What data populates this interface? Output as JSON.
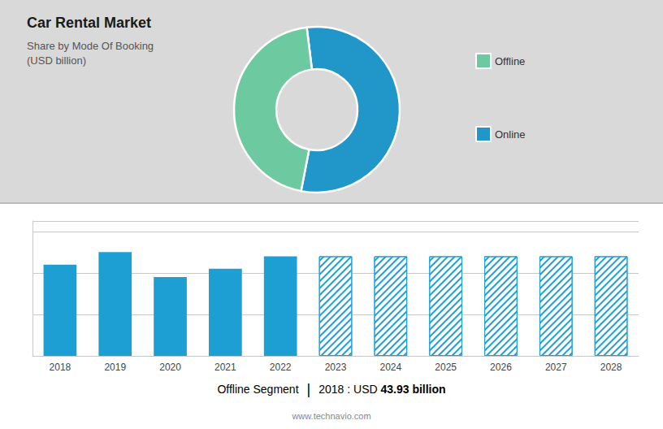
{
  "chart_data": [
    {
      "type": "pie",
      "title": "Car Rental Market",
      "subtitle": [
        "Share by Mode Of Booking",
        "(USD billion)"
      ],
      "categories": [
        "Online",
        "Offline"
      ],
      "values": [
        55,
        45
      ],
      "colors": [
        "#2196c8",
        "#6dc9a0"
      ],
      "legend": "right"
    },
    {
      "type": "bar",
      "categories": [
        "2018",
        "2019",
        "2020",
        "2021",
        "2022",
        "2023",
        "2024",
        "2025",
        "2026",
        "2027",
        "2028"
      ],
      "series": [
        {
          "color": "#1e9fd4",
          "values": [
            44,
            50,
            38,
            42,
            48,
            null,
            null,
            null,
            null,
            null,
            null
          ]
        },
        {
          "color": "#1e9fd4",
          "values": [
            null,
            null,
            null,
            null,
            null,
            48,
            48,
            48,
            48,
            48,
            48
          ]
        }
      ],
      "ylim": [
        0,
        65
      ],
      "yticks": [
        0,
        20,
        40,
        60
      ],
      "grid": true,
      "tick_labels": "x",
      "annotations": [
        "Offline Segment",
        "|",
        "2018 : USD ",
        "43.93 billion",
        "www.technavio.com"
      ]
    }
  ]
}
